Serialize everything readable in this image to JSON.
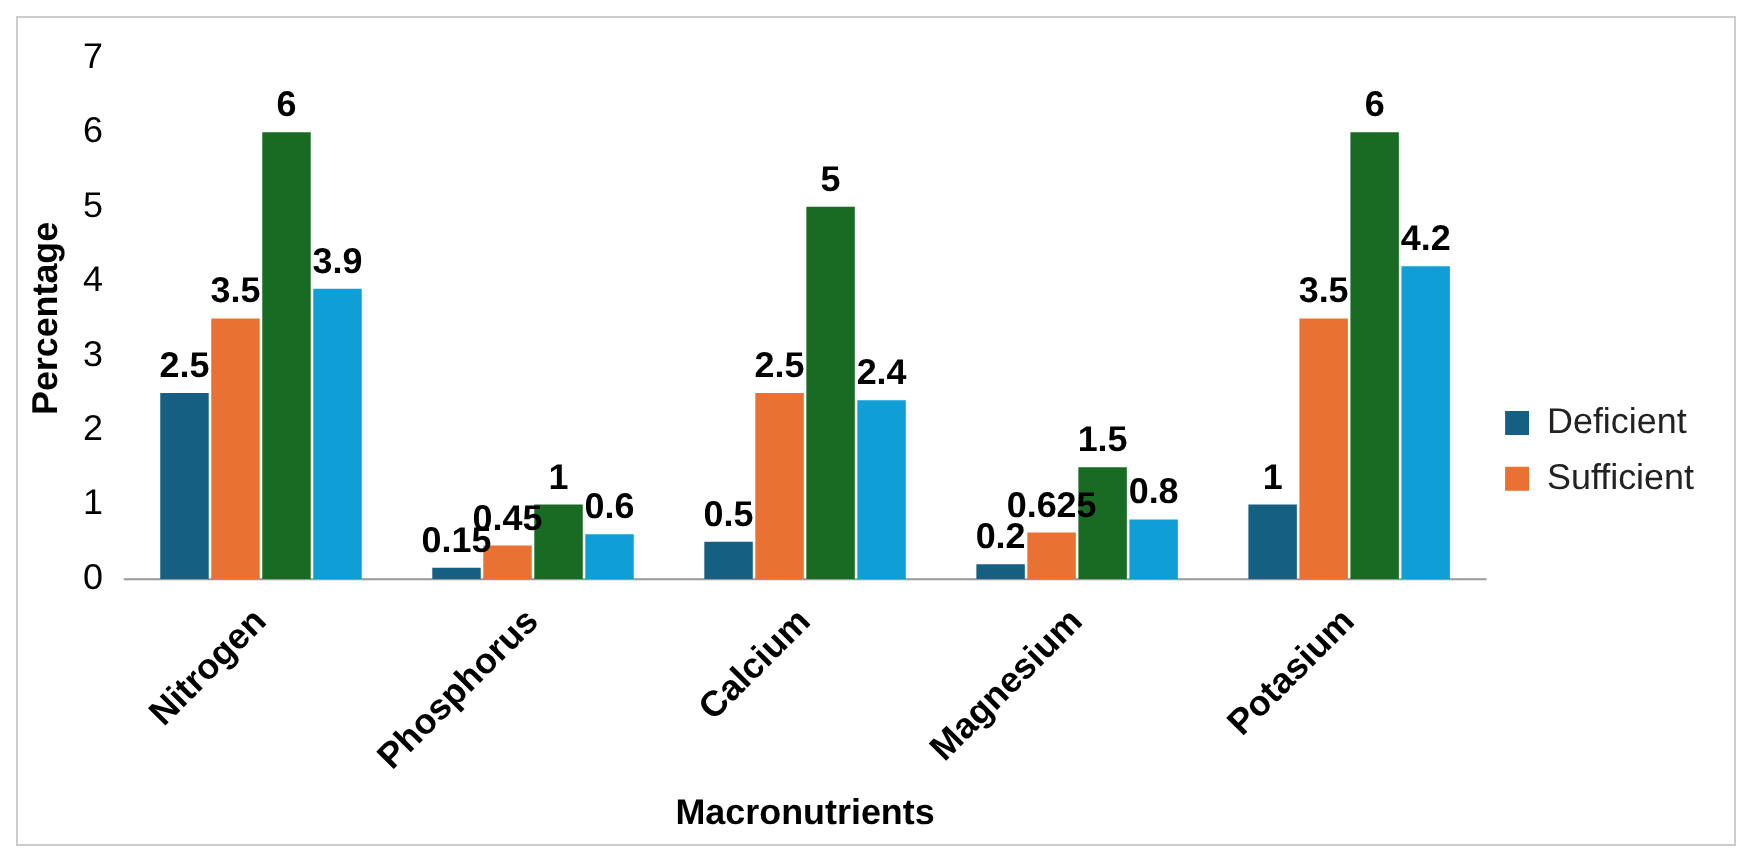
{
  "chart_data": {
    "type": "bar",
    "xlabel": "Macronutrients",
    "ylabel": "Percentage",
    "categories": [
      "Nitrogen",
      "Phosphorus",
      "Calcium",
      "Magnesium",
      "Potasium"
    ],
    "series": [
      {
        "name": "Deficient",
        "color": "#156082",
        "values": [
          2.5,
          0.15,
          0.5,
          0.2,
          1
        ]
      },
      {
        "name": "Sufficient",
        "color": "#e97132",
        "values": [
          3.5,
          0.45,
          2.5,
          0.625,
          3.5
        ]
      },
      {
        "color": "#196b24",
        "values": [
          6,
          1,
          5,
          1.5,
          6
        ]
      },
      {
        "color": "#0f9ed5",
        "values": [
          3.9,
          0.6,
          2.4,
          0.8,
          4.2
        ]
      }
    ],
    "ylim": [
      0,
      7
    ],
    "yticks": [
      0,
      1,
      2,
      3,
      4,
      5,
      6,
      7
    ],
    "grid": false,
    "legend": "right",
    "data_labels": true
  }
}
